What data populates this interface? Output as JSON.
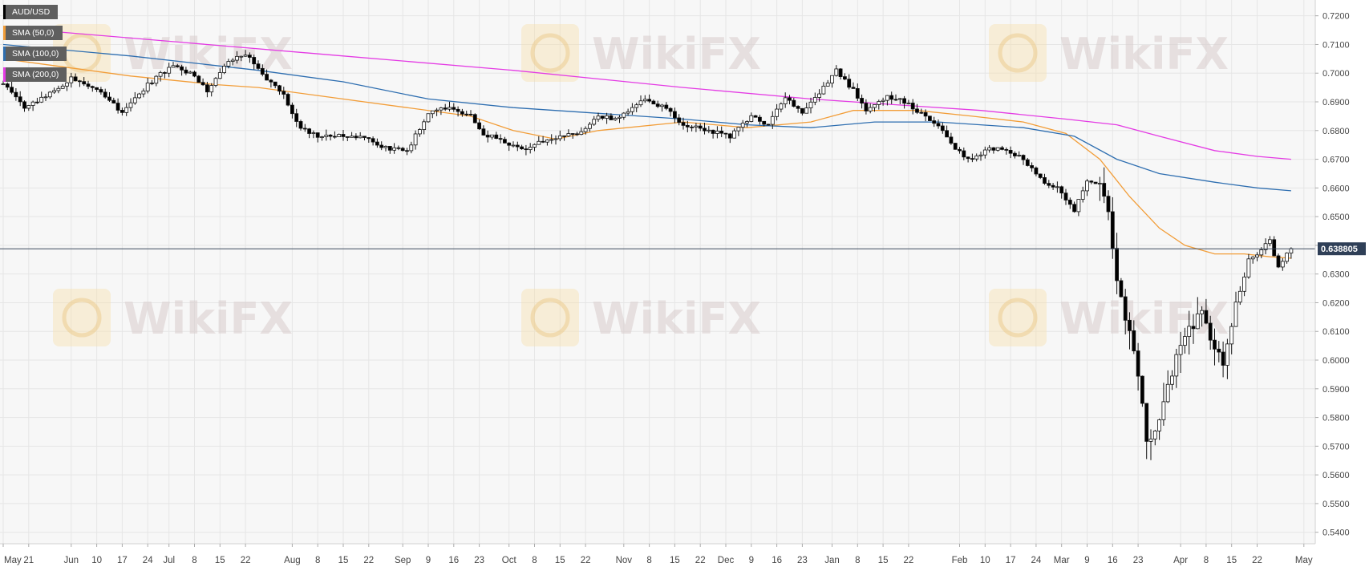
{
  "legend": [
    {
      "label": "AUD/USD",
      "color": "#000000"
    },
    {
      "label": "SMA (50,0)",
      "color": "#f29d38"
    },
    {
      "label": "SMA (100,0)",
      "color": "#2e6eb0"
    },
    {
      "label": "SMA (200,0)",
      "color": "#e43be4"
    }
  ],
  "watermark": "WikiFX",
  "chart_data": {
    "type": "candlestick",
    "symbol": "AUD/USD",
    "ylim": [
      0.536,
      0.7255
    ],
    "y_ticks": [
      "0.7200",
      "0.7100",
      "0.7000",
      "0.6900",
      "0.6800",
      "0.6700",
      "0.6600",
      "0.6500",
      "0.6400",
      "0.6300",
      "0.6200",
      "0.6100",
      "0.6000",
      "0.5900",
      "0.5800",
      "0.5700",
      "0.5600",
      "0.5500",
      "0.5400"
    ],
    "x_ticks": [
      "May",
      "21",
      "Jun",
      "10",
      "17",
      "24",
      "Jul",
      "8",
      "15",
      "22",
      "Aug",
      "8",
      "15",
      "22",
      "Sep",
      "9",
      "16",
      "23",
      "Oct",
      "8",
      "15",
      "22",
      "Nov",
      "8",
      "15",
      "22",
      "Dec",
      "9",
      "16",
      "23",
      "Jan",
      "8",
      "15",
      "22",
      "Feb",
      "10",
      "17",
      "24",
      "Mar",
      "9",
      "16",
      "23",
      "Apr",
      "8",
      "15",
      "22",
      "May"
    ],
    "x_tick_index": [
      0,
      6,
      16,
      22,
      28,
      34,
      39,
      45,
      51,
      57,
      68,
      74,
      80,
      86,
      94,
      100,
      106,
      112,
      119,
      125,
      131,
      137,
      146,
      152,
      158,
      164,
      170,
      176,
      182,
      188,
      195,
      201,
      207,
      213,
      225,
      231,
      237,
      243,
      249,
      255,
      261,
      267,
      277,
      283,
      289,
      295,
      306
    ],
    "current_price": "0.638805",
    "current_price_value": 0.6388,
    "price_colors": {
      "up": "#ffffff",
      "down": "#000000",
      "axis_label_bg": "#2f3f57"
    },
    "ohlc_anchors": [
      [
        0,
        0.696
      ],
      [
        5,
        0.688
      ],
      [
        10,
        0.692
      ],
      [
        16,
        0.698
      ],
      [
        22,
        0.695
      ],
      [
        28,
        0.686
      ],
      [
        34,
        0.696
      ],
      [
        40,
        0.703
      ],
      [
        45,
        0.699
      ],
      [
        48,
        0.694
      ],
      [
        53,
        0.704
      ],
      [
        57,
        0.707
      ],
      [
        62,
        0.698
      ],
      [
        66,
        0.692
      ],
      [
        70,
        0.681
      ],
      [
        74,
        0.678
      ],
      [
        80,
        0.678
      ],
      [
        86,
        0.677
      ],
      [
        90,
        0.674
      ],
      [
        95,
        0.673
      ],
      [
        100,
        0.686
      ],
      [
        105,
        0.688
      ],
      [
        110,
        0.685
      ],
      [
        113,
        0.679
      ],
      [
        118,
        0.676
      ],
      [
        122,
        0.673
      ],
      [
        126,
        0.676
      ],
      [
        132,
        0.678
      ],
      [
        137,
        0.68
      ],
      [
        140,
        0.685
      ],
      [
        145,
        0.684
      ],
      [
        150,
        0.691
      ],
      [
        156,
        0.688
      ],
      [
        160,
        0.682
      ],
      [
        166,
        0.68
      ],
      [
        171,
        0.678
      ],
      [
        176,
        0.685
      ],
      [
        180,
        0.682
      ],
      [
        184,
        0.692
      ],
      [
        188,
        0.686
      ],
      [
        192,
        0.693
      ],
      [
        196,
        0.701
      ],
      [
        200,
        0.694
      ],
      [
        203,
        0.687
      ],
      [
        208,
        0.692
      ],
      [
        212,
        0.69
      ],
      [
        216,
        0.686
      ],
      [
        220,
        0.682
      ],
      [
        224,
        0.673
      ],
      [
        228,
        0.67
      ],
      [
        232,
        0.674
      ],
      [
        236,
        0.673
      ],
      [
        240,
        0.67
      ],
      [
        244,
        0.663
      ],
      [
        248,
        0.66
      ],
      [
        252,
        0.652
      ],
      [
        255,
        0.663
      ],
      [
        258,
        0.66
      ],
      [
        260,
        0.652
      ],
      [
        262,
        0.63
      ],
      [
        264,
        0.615
      ],
      [
        267,
        0.595
      ],
      [
        269,
        0.573
      ],
      [
        271,
        0.575
      ],
      [
        273,
        0.585
      ],
      [
        276,
        0.6
      ],
      [
        279,
        0.612
      ],
      [
        282,
        0.615
      ],
      [
        285,
        0.603
      ],
      [
        287,
        0.6
      ],
      [
        290,
        0.618
      ],
      [
        293,
        0.635
      ],
      [
        296,
        0.638
      ],
      [
        298,
        0.642
      ],
      [
        300,
        0.632
      ],
      [
        302,
        0.637
      ],
      [
        303,
        0.6388
      ]
    ],
    "sma_points": {
      "sma50": [
        [
          0,
          0.705
        ],
        [
          30,
          0.699
        ],
        [
          50,
          0.696
        ],
        [
          60,
          0.695
        ],
        [
          75,
          0.692
        ],
        [
          95,
          0.688
        ],
        [
          110,
          0.685
        ],
        [
          120,
          0.68
        ],
        [
          130,
          0.677
        ],
        [
          140,
          0.68
        ],
        [
          160,
          0.683
        ],
        [
          175,
          0.681
        ],
        [
          190,
          0.683
        ],
        [
          200,
          0.687
        ],
        [
          215,
          0.687
        ],
        [
          228,
          0.685
        ],
        [
          240,
          0.683
        ],
        [
          250,
          0.679
        ],
        [
          258,
          0.67
        ],
        [
          265,
          0.657
        ],
        [
          272,
          0.646
        ],
        [
          278,
          0.64
        ],
        [
          285,
          0.637
        ],
        [
          292,
          0.637
        ],
        [
          298,
          0.636
        ],
        [
          303,
          0.6355
        ]
      ],
      "sma100": [
        [
          0,
          0.71
        ],
        [
          30,
          0.706
        ],
        [
          60,
          0.701
        ],
        [
          80,
          0.697
        ],
        [
          100,
          0.691
        ],
        [
          120,
          0.688
        ],
        [
          140,
          0.686
        ],
        [
          160,
          0.684
        ],
        [
          175,
          0.682
        ],
        [
          190,
          0.681
        ],
        [
          205,
          0.683
        ],
        [
          220,
          0.683
        ],
        [
          240,
          0.681
        ],
        [
          252,
          0.678
        ],
        [
          262,
          0.67
        ],
        [
          272,
          0.665
        ],
        [
          285,
          0.662
        ],
        [
          295,
          0.66
        ],
        [
          303,
          0.659
        ]
      ],
      "sma200": [
        [
          0,
          0.716
        ],
        [
          40,
          0.711
        ],
        [
          80,
          0.706
        ],
        [
          120,
          0.701
        ],
        [
          160,
          0.695
        ],
        [
          190,
          0.691
        ],
        [
          210,
          0.689
        ],
        [
          230,
          0.687
        ],
        [
          250,
          0.684
        ],
        [
          262,
          0.682
        ],
        [
          272,
          0.678
        ],
        [
          285,
          0.673
        ],
        [
          295,
          0.671
        ],
        [
          303,
          0.67
        ]
      ]
    }
  }
}
